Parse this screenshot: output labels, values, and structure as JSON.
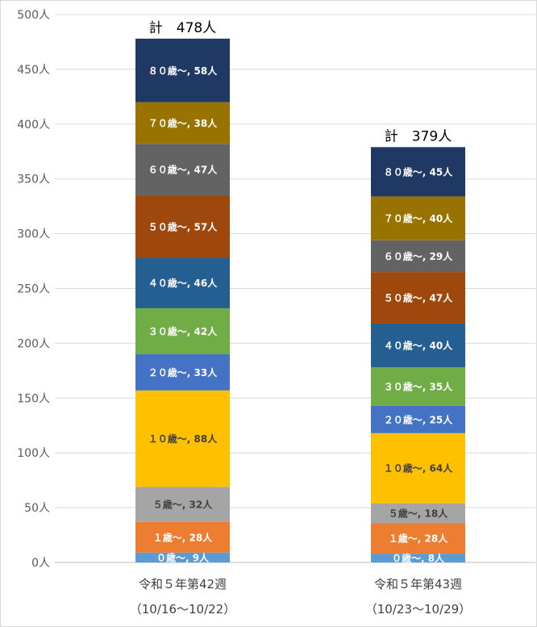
{
  "chart_data": {
    "type": "bar",
    "stacked": true,
    "ylim": [
      0,
      500
    ],
    "y_ticks": [
      0,
      50,
      100,
      150,
      200,
      250,
      300,
      350,
      400,
      450,
      500
    ],
    "y_tick_labels": [
      "0人",
      "50人",
      "100人",
      "150人",
      "200人",
      "250人",
      "300人",
      "350人",
      "400人",
      "450人",
      "500人"
    ],
    "grid": true,
    "categories": [
      {
        "line1": "令和５年第42週",
        "line2": "（10/16～10/22）"
      },
      {
        "line1": "令和５年第43週",
        "line2": "（10/23～10/29）"
      }
    ],
    "totals": [
      {
        "value": 478,
        "label": "計　478人"
      },
      {
        "value": 379,
        "label": "計　379人"
      }
    ],
    "series": [
      {
        "name": "０歳～",
        "color": "#5b9bd5",
        "text_color": "#ffffff",
        "values": [
          9,
          8
        ],
        "labels": [
          "０歳～, 9人",
          "０歳～, 8人"
        ]
      },
      {
        "name": "１歳～",
        "color": "#ed7d31",
        "text_color": "#ffffff",
        "values": [
          28,
          28
        ],
        "labels": [
          "１歳～, 28人",
          "１歳～, 28人"
        ]
      },
      {
        "name": "５歳～",
        "color": "#a5a5a5",
        "text_color": "#404040",
        "values": [
          32,
          18
        ],
        "labels": [
          "５歳～, 32人",
          "５歳～, 18人"
        ]
      },
      {
        "name": "１０歳～",
        "color": "#ffc000",
        "text_color": "#404040",
        "values": [
          88,
          64
        ],
        "labels": [
          "１０歳～, 88人",
          "１０歳～, 64人"
        ]
      },
      {
        "name": "２０歳～",
        "color": "#4472c4",
        "text_color": "#ffffff",
        "values": [
          33,
          25
        ],
        "labels": [
          "２０歳～, 33人",
          "２０歳～, 25人"
        ]
      },
      {
        "name": "３０歳～",
        "color": "#70ad47",
        "text_color": "#ffffff",
        "values": [
          42,
          35
        ],
        "labels": [
          "３０歳～, 42人",
          "３０歳～, 35人"
        ]
      },
      {
        "name": "４０歳～",
        "color": "#255e91",
        "text_color": "#ffffff",
        "values": [
          46,
          40
        ],
        "labels": [
          "４０歳～, 46人",
          "４０歳～, 40人"
        ]
      },
      {
        "name": "５０歳～",
        "color": "#9e480e",
        "text_color": "#ffffff",
        "values": [
          57,
          47
        ],
        "labels": [
          "５０歳～, 57人",
          "５０歳～, 47人"
        ]
      },
      {
        "name": "６０歳～",
        "color": "#636363",
        "text_color": "#ffffff",
        "values": [
          47,
          29
        ],
        "labels": [
          "６０歳～, 47人",
          "６０歳～, 29人"
        ]
      },
      {
        "name": "７０歳～",
        "color": "#997300",
        "text_color": "#ffffff",
        "values": [
          38,
          40
        ],
        "labels": [
          "７０歳～, 38人",
          "７０歳～, 40人"
        ]
      },
      {
        "name": "８０歳～",
        "color": "#203864",
        "text_color": "#ffffff",
        "values": [
          58,
          45
        ],
        "labels": [
          "８０歳～, 58人",
          "８０歳～, 45人"
        ]
      }
    ]
  }
}
